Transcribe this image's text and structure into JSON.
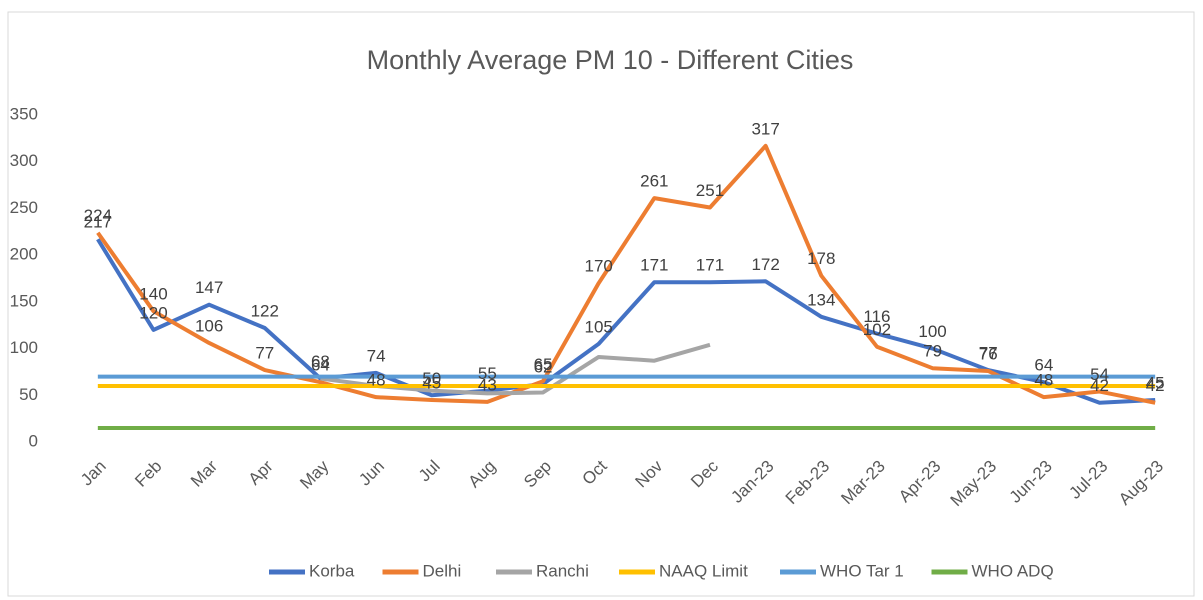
{
  "chart_data": {
    "type": "line",
    "title": "Monthly Average PM 10 - Different Cities",
    "categories": [
      "Jan",
      "Feb",
      "Mar",
      "Apr",
      "May",
      "Jun",
      "Jul",
      "Aug",
      "Sep",
      "Oct",
      "Nov",
      "Dec",
      "Jan-23",
      "Feb-23",
      "Mar-23",
      "Apr-23",
      "May-23",
      "Jun-23",
      "Jul-23",
      "Aug-23"
    ],
    "series": [
      {
        "name": "Korba",
        "color": "#4472c4",
        "data_labels": true,
        "values": [
          217,
          120,
          147,
          122,
          68,
          74,
          50,
          55,
          62,
          105,
          171,
          171,
          172,
          134,
          116,
          100,
          77,
          64,
          42,
          45
        ]
      },
      {
        "name": "Delhi",
        "color": "#ed7d31",
        "data_labels": true,
        "values": [
          224,
          140,
          106,
          77,
          64,
          48,
          45,
          43,
          65,
          170,
          261,
          251,
          317,
          178,
          102,
          79,
          76,
          48,
          54,
          42
        ]
      },
      {
        "name": "Ranchi",
        "color": "#a5a5a5",
        "data_labels": false,
        "values": [
          null,
          null,
          null,
          null,
          68,
          60,
          55,
          52,
          53,
          91,
          87,
          104,
          null,
          null,
          null,
          null,
          null,
          null,
          null,
          null
        ]
      },
      {
        "name": "NAAQ Limit",
        "color": "#ffc000",
        "data_labels": false,
        "values": [
          60,
          60,
          60,
          60,
          60,
          60,
          60,
          60,
          60,
          60,
          60,
          60,
          60,
          60,
          60,
          60,
          60,
          60,
          60,
          60
        ]
      },
      {
        "name": "WHO Tar 1",
        "color": "#5b9bd5",
        "data_labels": false,
        "values": [
          70,
          70,
          70,
          70,
          70,
          70,
          70,
          70,
          70,
          70,
          70,
          70,
          70,
          70,
          70,
          70,
          70,
          70,
          70,
          70
        ]
      },
      {
        "name": "WHO ADQ",
        "color": "#70ad47",
        "data_labels": false,
        "values": [
          15,
          15,
          15,
          15,
          15,
          15,
          15,
          15,
          15,
          15,
          15,
          15,
          15,
          15,
          15,
          15,
          15,
          15,
          15,
          15
        ]
      }
    ],
    "ylim": [
      0,
      350
    ],
    "yticks": [
      0,
      50,
      100,
      150,
      200,
      250,
      300,
      350
    ],
    "grid": false,
    "legend": "bottom"
  }
}
